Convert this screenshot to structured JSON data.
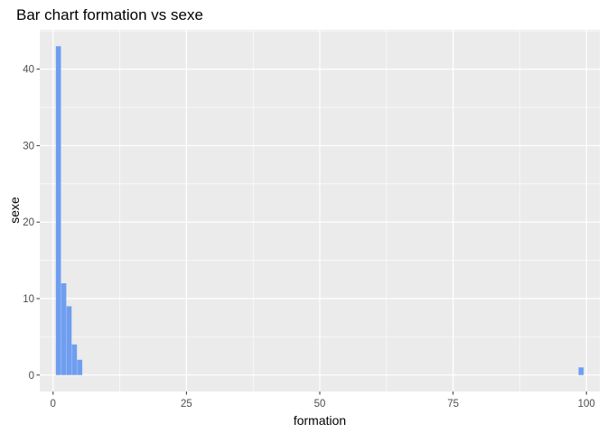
{
  "chart_data": {
    "type": "bar",
    "title": "Bar chart formation vs sexe",
    "xlabel": "formation",
    "ylabel": "sexe",
    "x": [
      1,
      2,
      3,
      4,
      5,
      99
    ],
    "values": [
      43,
      12,
      9,
      4,
      2,
      1
    ],
    "xlim": [
      -2.5,
      102.5
    ],
    "ylim": [
      -2.15,
      45.15
    ],
    "x_ticks": [
      0,
      25,
      50,
      75,
      100
    ],
    "y_ticks": [
      0,
      10,
      20,
      30,
      40
    ],
    "grid": true,
    "bar_color": "#6f9ef0",
    "panel_color": "#ebebeb",
    "grid_color": "#ffffff"
  }
}
